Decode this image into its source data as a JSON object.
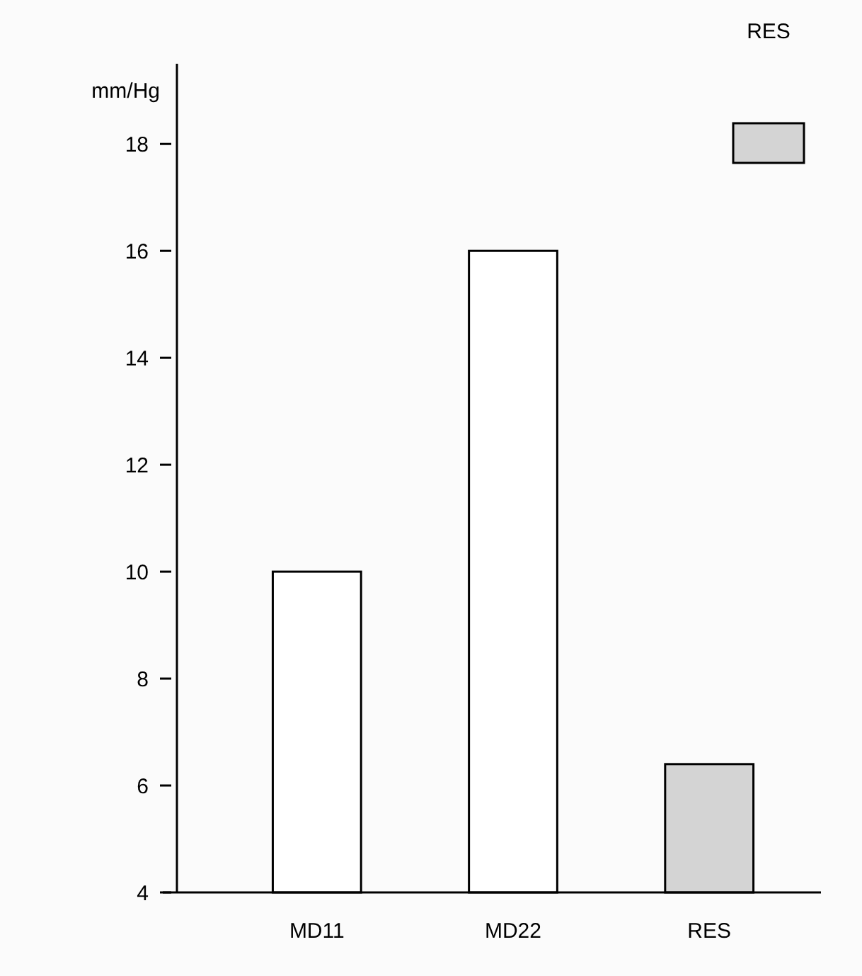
{
  "chart_data": {
    "type": "bar",
    "ylabel": "mm/Hg",
    "categories": [
      "MD11",
      "MD22",
      "RES"
    ],
    "stacked": true,
    "series": [
      {
        "color": "#ffffff",
        "values": [
          10,
          16,
          null
        ]
      },
      {
        "name": "RES",
        "color": "#d4d4d4",
        "values": [
          null,
          null,
          6.4
        ]
      }
    ],
    "ylim": [
      4,
      19.5
    ],
    "yticks": [
      4,
      6,
      8,
      10,
      12,
      14,
      16,
      18
    ],
    "grid": false,
    "legend": "top right"
  }
}
